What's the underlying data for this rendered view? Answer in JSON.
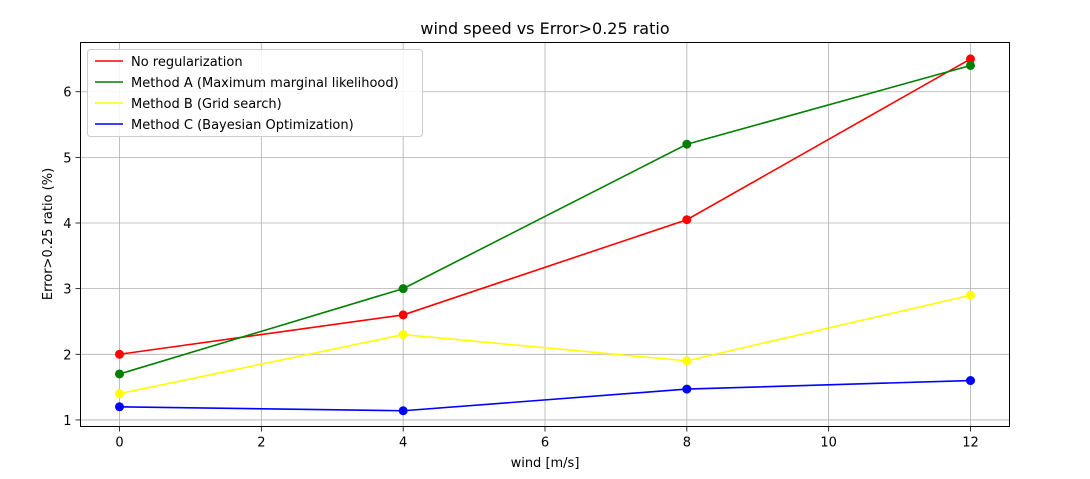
{
  "chart_data": {
    "type": "line",
    "title": "wind speed vs Error>0.25 ratio",
    "xlabel": "wind [m/s]",
    "ylabel": "Error>0.25 ratio (%)",
    "x": [
      0,
      4,
      8,
      12
    ],
    "xlim": [
      -0.55,
      12.55
    ],
    "ylim": [
      0.9,
      6.75
    ],
    "xticks": [
      0,
      2,
      4,
      6,
      8,
      10,
      12
    ],
    "yticks": [
      1,
      2,
      3,
      4,
      5,
      6
    ],
    "grid": true,
    "legend_position": "upper-left",
    "markers": true,
    "series": [
      {
        "name": "No regularization",
        "color": "#ff0000",
        "values": [
          2.0,
          2.6,
          4.05,
          6.5
        ]
      },
      {
        "name": "Method A (Maximum marginal likelihood)",
        "color": "#008000",
        "values": [
          1.7,
          3.0,
          5.2,
          6.4
        ]
      },
      {
        "name": "Method B (Grid search)",
        "color": "#ffff00",
        "values": [
          1.4,
          2.3,
          1.9,
          2.9
        ]
      },
      {
        "name": "Method C (Bayesian Optimization)",
        "color": "#0000ff",
        "values": [
          1.2,
          1.14,
          1.47,
          1.6
        ]
      }
    ]
  }
}
